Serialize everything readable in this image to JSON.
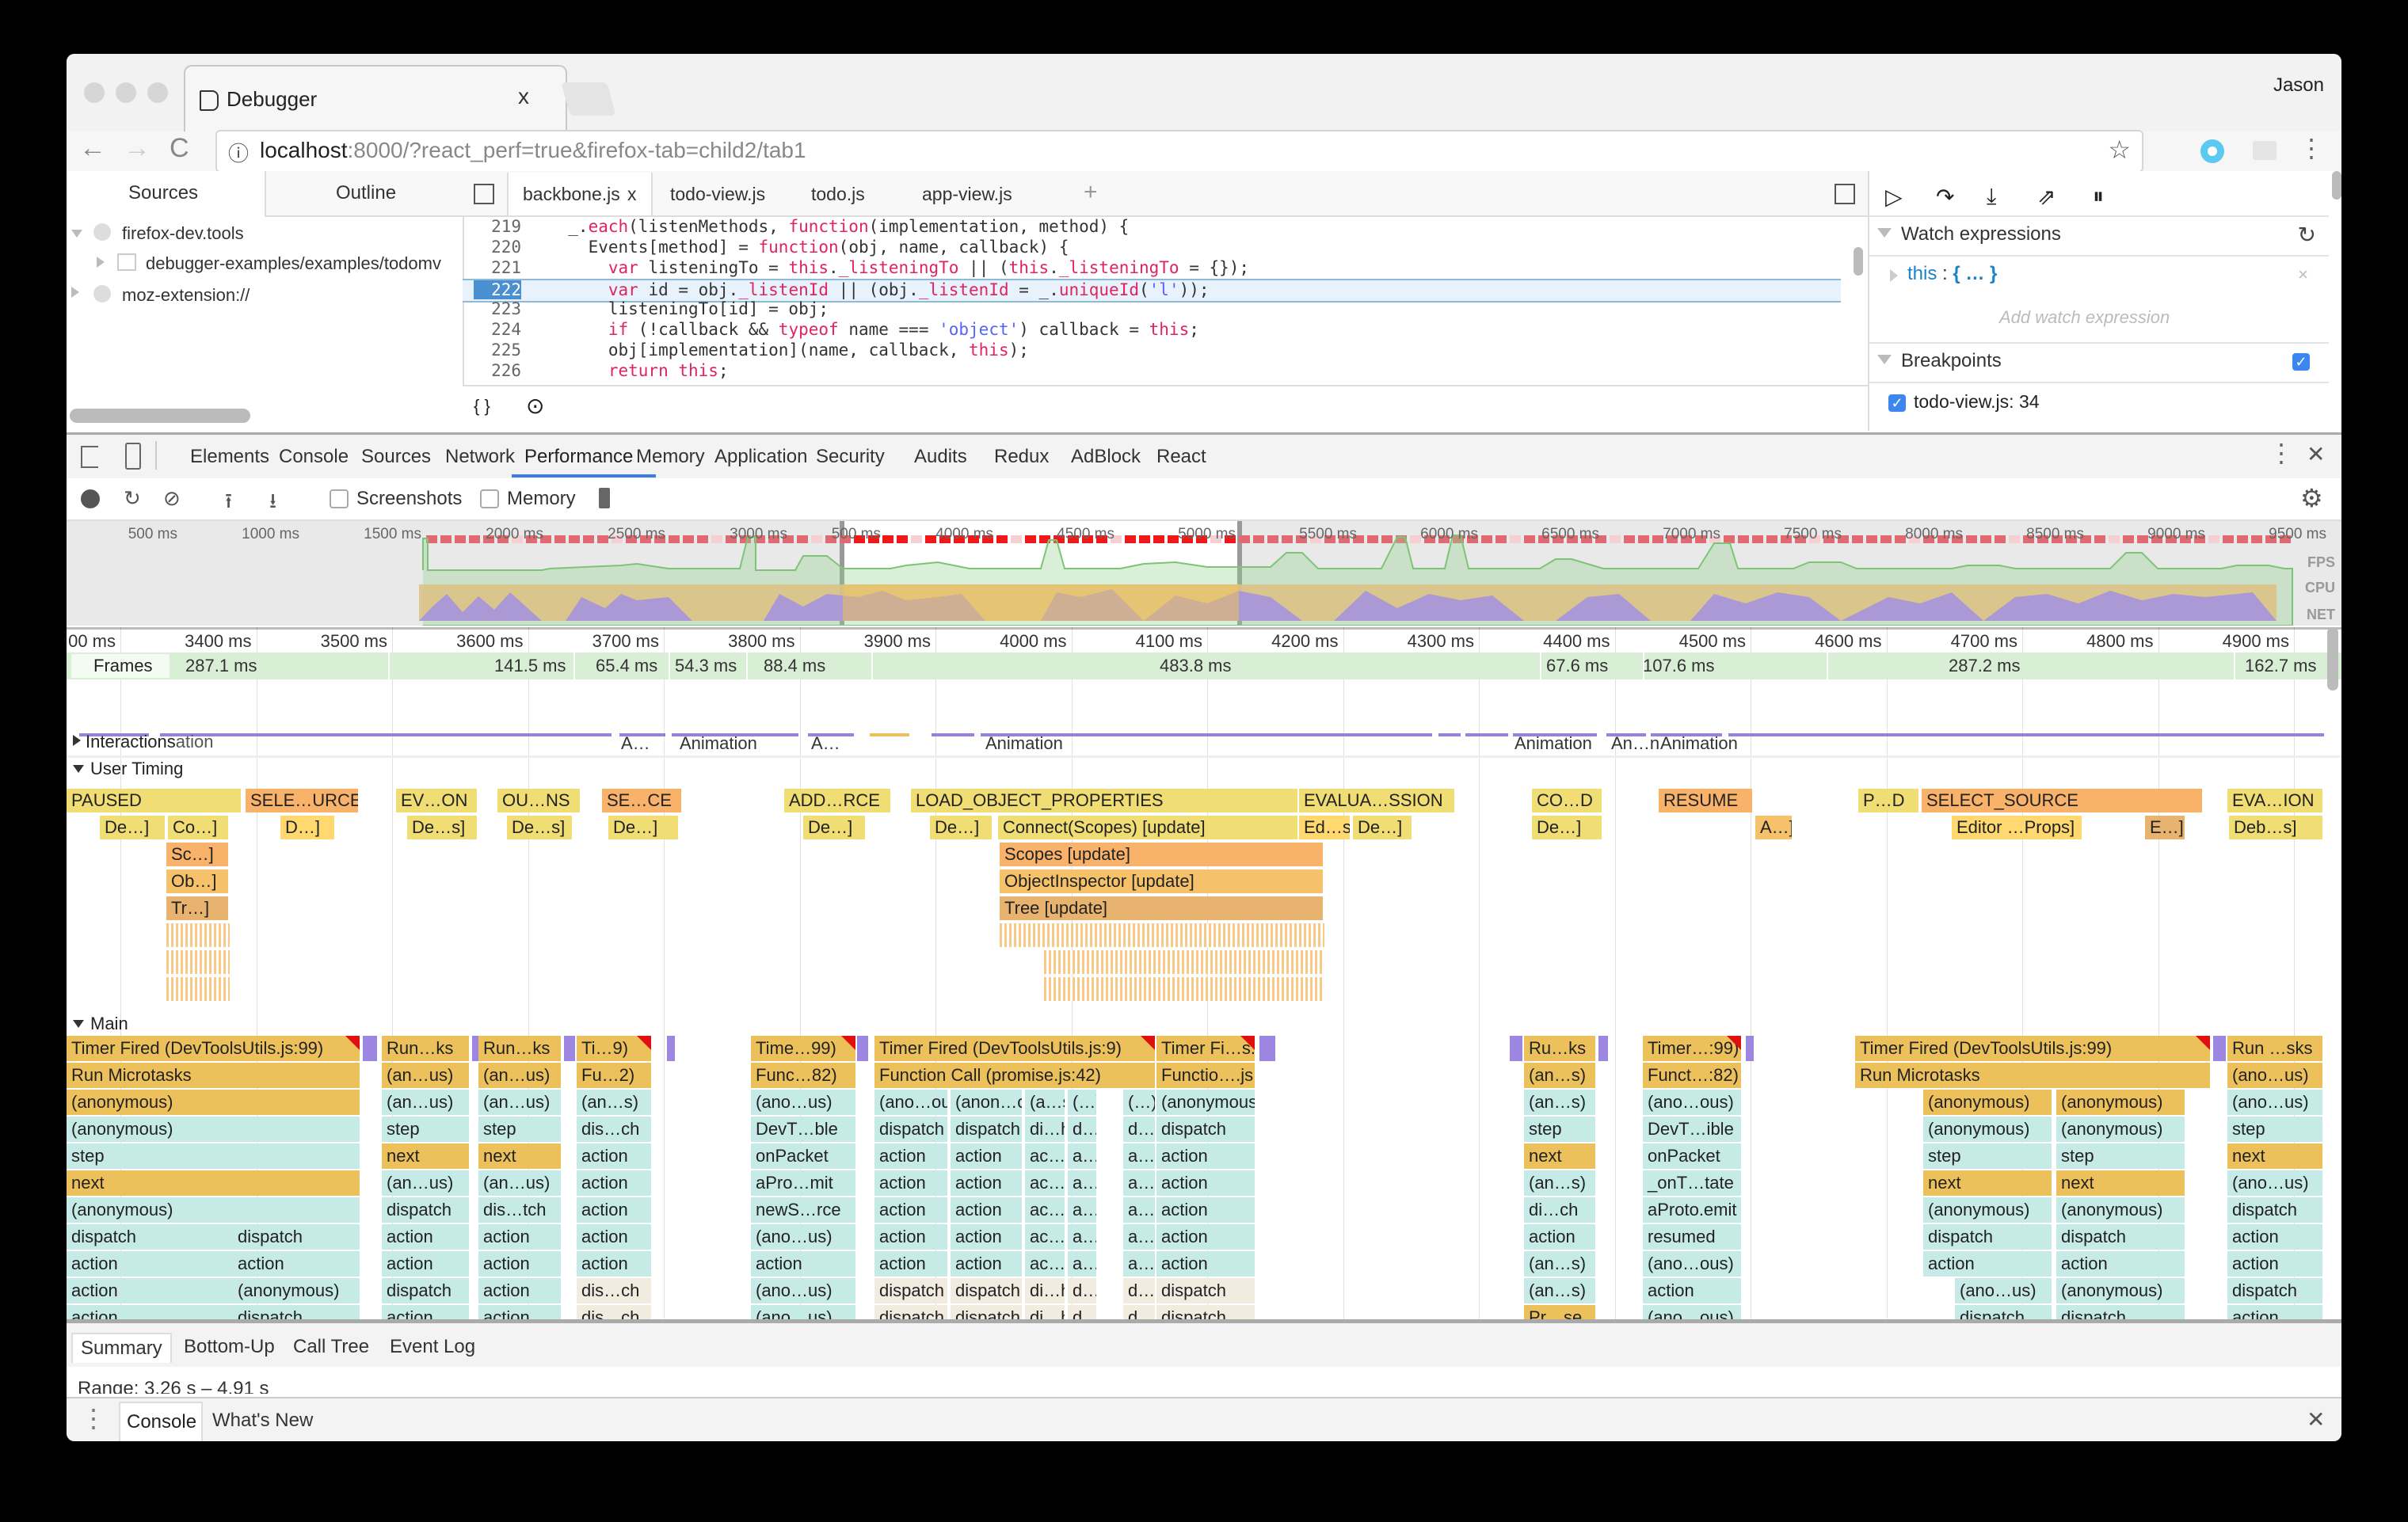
{
  "browser": {
    "tab_title": "Debugger",
    "tab_close": "x",
    "user": "Jason",
    "url_host": "localhost",
    "url_rest": ":8000/?react_perf=true&firefox-tab=child2/tab1",
    "back_icon": "←",
    "forward_icon": "→",
    "reload_icon": "C",
    "info_icon": "ⓘ",
    "star_icon": "☆",
    "menu_icon": "⋮"
  },
  "debugger": {
    "left_tabs": [
      "Sources",
      "Outline"
    ],
    "tree": [
      {
        "label": "firefox-dev.tools",
        "expanded": true
      },
      {
        "label": "debugger-examples/examples/todomv",
        "expanded": false
      },
      {
        "label": "moz-extension://",
        "expanded": false
      }
    ],
    "editor_tabs": [
      {
        "label": "backbone.js",
        "active": true,
        "close": "x"
      },
      {
        "label": "todo-view.js"
      },
      {
        "label": "todo.js"
      },
      {
        "label": "app-view.js"
      }
    ],
    "add_tab": "+",
    "code_lines": [
      {
        "n": "219",
        "html": "  _.<span class=\"kw\">each</span>(listenMethods, <span class=\"kw\">function</span>(implementation, method) {"
      },
      {
        "n": "220",
        "html": "    Events[method] = <span class=\"kw\">function</span>(obj, name, callback) {"
      },
      {
        "n": "221",
        "html": "      <span class=\"kw\">var</span> listeningTo = <span class=\"kw\">this</span>.<span class=\"kw\">_listeningTo</span> || (<span class=\"kw\">this</span>.<span class=\"kw\">_listeningTo</span> = {});"
      },
      {
        "n": "222",
        "html": "      <span class=\"kw\">var</span> id = obj.<span class=\"kw\">_listenId</span> || (obj.<span class=\"kw\">_listenId</span> = _.<span class=\"kw\">uniqueId</span>(<span class=\"str\">'l'</span>));",
        "current": true
      },
      {
        "n": "223",
        "html": "      listeningTo[id] = obj;"
      },
      {
        "n": "224",
        "html": "      <span class=\"kw\">if</span> (!callback &amp;&amp; <span class=\"kw\">typeof</span> name === <span class=\"str\">'object'</span>) callback = <span class=\"kw\">this</span>;"
      },
      {
        "n": "225",
        "html": "      obj[implementation](name, callback, <span class=\"kw\">this</span>);"
      },
      {
        "n": "226",
        "html": "      <span class=\"kw\">return this</span>;"
      }
    ],
    "footer_icons": [
      "{ }",
      "⊙"
    ],
    "watch": {
      "title": "Watch expressions",
      "items": [
        {
          "name": "this",
          "value": "{ … }"
        }
      ],
      "placeholder": "Add watch expression"
    },
    "breakpoints": {
      "title": "Breakpoints",
      "items": [
        {
          "label": "todo-view.js: 34",
          "checked": true
        }
      ]
    }
  },
  "devtools": {
    "tabs": [
      "Elements",
      "Console",
      "Sources",
      "Network",
      "Performance",
      "Memory",
      "Application",
      "Security",
      "Audits",
      "Redux",
      "AdBlock",
      "React"
    ],
    "active_tab": "Performance",
    "toolbar": {
      "screenshots_label": "Screenshots",
      "memory_label": "Memory"
    },
    "overview": {
      "ticks": [
        "500 ms",
        "1000 ms",
        "1500 ms",
        "2000 ms",
        "2500 ms",
        "3000 ms",
        "500 ms",
        "4000 ms",
        "4500 ms",
        "5000 ms",
        "5500 ms",
        "6000 ms",
        "6500 ms",
        "7000 ms",
        "7500 ms",
        "8000 ms",
        "8500 ms",
        "9000 ms",
        "9500 ms"
      ],
      "labels": [
        "FPS",
        "CPU",
        "NET"
      ]
    },
    "ruler": [
      "00 ms",
      "3400 ms",
      "3500 ms",
      "3600 ms",
      "3700 ms",
      "3800 ms",
      "3900 ms",
      "4000 ms",
      "4100 ms",
      "4200 ms",
      "4300 ms",
      "4400 ms",
      "4500 ms",
      "4600 ms",
      "4700 ms",
      "4800 ms",
      "4900 ms"
    ],
    "frames": {
      "label": "Frames",
      "segments": [
        "287.1 ms",
        "141.5 ms",
        "65.4 ms",
        "54.3 ms",
        "88.4 ms",
        "483.8 ms",
        "67.6 ms",
        "107.6 ms",
        "287.2 ms",
        "162.7 ms"
      ]
    },
    "interactions": {
      "label": "Interactions",
      "overlap_text": "ation",
      "items": [
        "A…",
        "Animation",
        "A…",
        "Animation",
        "Animation",
        "An…n",
        "Animation"
      ]
    },
    "user_timing": {
      "label": "User Timing",
      "row1": [
        "PAUSED",
        "SELE…URCE",
        "EV…ON",
        "OU…NS",
        "SE…CE",
        "ADD…RCE",
        "LOAD_OBJECT_PROPERTIES",
        "EVALUA…SSION",
        "CO…D",
        "RESUME",
        "P…D",
        "SELECT_SOURCE",
        "EVA…ION"
      ],
      "row2": [
        "De…]",
        "Co…]",
        "D…]",
        "De…s]",
        "De…s]",
        "De…]",
        "De…]",
        "De…]",
        "Connect(Scopes) [update]",
        "Ed…s]",
        "De…]",
        "De…]",
        "A…]",
        "Editor …Props]",
        "E…]",
        "Deb…s]"
      ],
      "row3": [
        "Sc…]",
        "Scopes [update]"
      ],
      "row4": [
        "Ob…]",
        "ObjectInspector [update]"
      ],
      "row5": [
        "Tr…]",
        "Tree [update]"
      ]
    },
    "main": {
      "label": "Main",
      "col_a": [
        "Timer Fired (DevToolsUtils.js:99)",
        "Run Microtasks",
        "(anonymous)",
        "(anonymous)",
        "step",
        "next",
        "(anonymous)",
        "dispatch",
        "action",
        "action",
        "action"
      ],
      "col_a2": [
        "dispatch",
        "action",
        "(anonymous)",
        "dispatch"
      ],
      "col_b": [
        "Run…ks",
        "(an…us)",
        "(an…us)",
        "step",
        "next",
        "(an…us)",
        "dispatch",
        "action",
        "action",
        "dispatch",
        "action"
      ],
      "col_c": [
        "Run…ks",
        "(an…us)",
        "(an…us)",
        "step",
        "next",
        "(an…us)",
        "dis…tch",
        "action",
        "action",
        "action",
        "action"
      ],
      "col_d": [
        "Ti…9)",
        "Fu…2)",
        "(an…s)",
        "dis…ch",
        "action",
        "action",
        "action",
        "action",
        "action",
        "dis…ch",
        "dis…ch"
      ],
      "col_e": [
        "Time…99)",
        "Func…82)",
        "(ano…us)",
        "DevT…ble",
        "onPacket",
        "aPro…mit",
        "newS…rce",
        "(ano…us)",
        "action",
        "(ano…us)",
        "(ano…us)"
      ],
      "col_f": [
        "Timer Fired (DevToolsUtils.js:9)",
        "Function Call (promise.js:42)"
      ],
      "col_f_sub": [
        [
          "(ano…ous)",
          "dispatch",
          "action",
          "action",
          "action",
          "action",
          "action",
          "dispatch",
          "dispatch"
        ],
        [
          "(anon…ous)",
          "dispatch",
          "action",
          "action",
          "action",
          "action",
          "action",
          "dispatch",
          "dispatch"
        ],
        [
          "(a…s)",
          "di…h",
          "ac…n",
          "ac…n",
          "ac…n",
          "ac…n",
          "ac…n",
          "di…h",
          "di…h"
        ],
        [
          "(…)",
          "d…",
          "a…",
          "a…",
          "a…",
          "a…",
          "a…",
          "d…",
          "d…"
        ],
        [
          "(…)",
          "d…",
          "a…",
          "a…",
          "a…",
          "a…",
          "a…",
          "d…",
          "d…"
        ]
      ],
      "col_g": [
        "Timer Fi…s.js:9)",
        "Functio….js:42)",
        "(anonymous)",
        "dispatch",
        "action",
        "action",
        "action",
        "action",
        "action",
        "dispatch",
        "dispatch"
      ],
      "col_h": [
        "Ru…ks",
        "(an…s)",
        "(an…s)",
        "step",
        "next",
        "(an…s)",
        "di…ch",
        "action",
        "(an…s)",
        "(an…s)",
        "Pr…se"
      ],
      "col_i": [
        "Timer…:99)",
        "Funct…:82)",
        "(ano…ous)",
        "DevT…ible",
        "onPacket",
        "_onT…tate",
        "aProto.emit",
        "resumed",
        "(ano…ous)",
        "action",
        "(ano…ous)"
      ],
      "col_j": [
        "Timer Fired (DevToolsUtils.js:99)",
        "Run Microtasks"
      ],
      "col_j_sub": [
        [
          "(anonymous)",
          "(anonymous)",
          "step",
          "next",
          "(anonymous)",
          "dispatch",
          "action",
          "(ano…us)",
          "dispatch"
        ],
        [
          "(anonymous)",
          "(anonymous)",
          "step",
          "next",
          "(anonymous)",
          "dispatch",
          "action",
          "(anonymous)",
          "dispatch"
        ]
      ],
      "col_k": [
        "Run …sks",
        "(ano…us)",
        "(ano…us)",
        "step",
        "next",
        "(ano…us)",
        "dispatch",
        "action",
        "action",
        "dispatch",
        "action"
      ]
    },
    "bottom_tabs": [
      "Summary",
      "Bottom-Up",
      "Call Tree",
      "Event Log"
    ],
    "range": "Range: 3.26 s – 4.91 s",
    "drawer_tabs": [
      "Console",
      "What's New"
    ],
    "close_icon": "✕"
  },
  "colors": {
    "accent": "#3b7ce6",
    "scripting": "#ecc15c",
    "js_frames": "#c6eae6",
    "rendering": "#9d86e0",
    "frames_bg": "#d8efd6",
    "fps_red": "#e0323c"
  }
}
